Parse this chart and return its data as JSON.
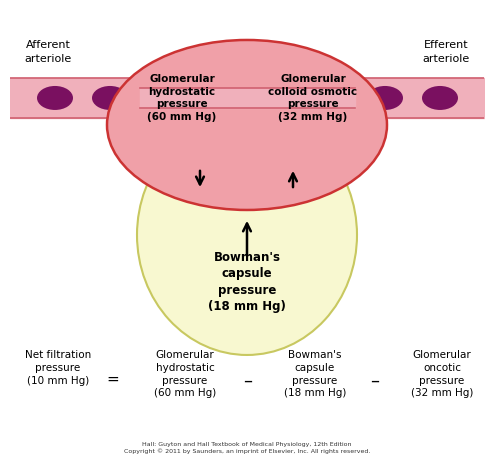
{
  "bg_color": "#ffffff",
  "tube_color": "#f0b0bb",
  "tube_border_color": "#d06070",
  "glom_color": "#f0a0a8",
  "glom_border_color": "#cc3333",
  "bowman_color": "#f8f8d0",
  "bowman_border_color": "#c8c860",
  "afferent_label": "Afferent\narteriole",
  "efferent_label": "Efferent\narteriole",
  "glom_left_label": "Glomerular\nhydrostatic\npressure\n(60 mm Hg)",
  "glom_right_label": "Glomerular\ncolloid osmotic\npressure\n(32 mm Hg)",
  "bowman_label": "Bowman's\ncapsule\npressure\n(18 mm Hg)",
  "eq_left": "Net filtration\npressure\n(10 mm Hg)",
  "eq_equals": "=",
  "eq_term1": "Glomerular\nhydrostatic\npressure\n(60 mm Hg)",
  "eq_minus1": "–",
  "eq_term2": "Bowman's\ncapsule\npressure\n(18 mm Hg)",
  "eq_minus2": "–",
  "eq_term3": "Glomerular\noncotic\npressure\n(32 mm Hg)",
  "footnote": "Hall: Guyton and Hall Textbook of Medical Physiology, 12th Edition\nCopyright © 2011 by Saunders, an imprint of Elsevier, Inc. All rights reserved.",
  "dark_purple": "#7a1060"
}
